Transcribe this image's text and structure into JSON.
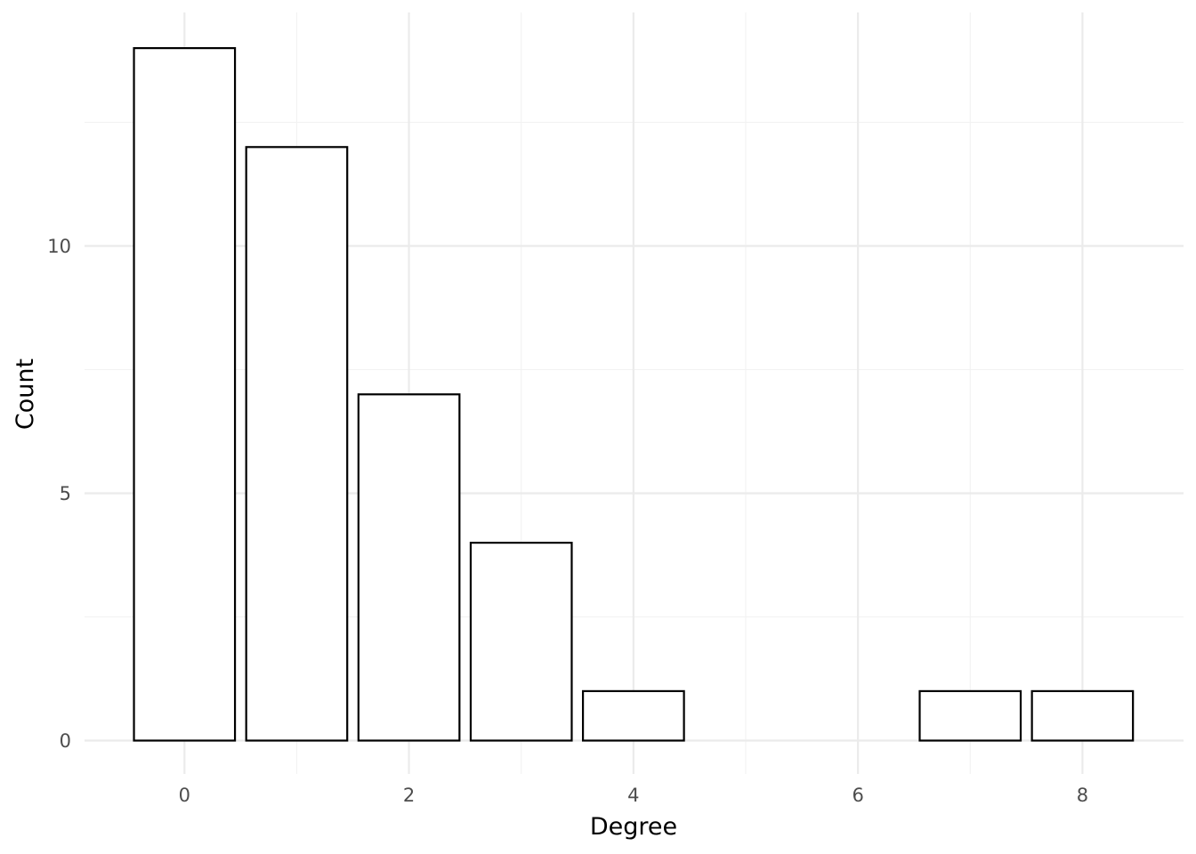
{
  "chart_data": {
    "type": "bar",
    "title": "",
    "xlabel": "Degree",
    "ylabel": "Count",
    "x": [
      0,
      1,
      2,
      3,
      4,
      7,
      8
    ],
    "values": [
      14,
      12,
      7,
      4,
      1,
      1,
      1
    ],
    "bar_width": 0.9,
    "xlim": [
      -0.45,
      8.45
    ],
    "ylim": [
      0,
      14
    ],
    "x_ticks": [
      0,
      2,
      4,
      6,
      8
    ],
    "x_tick_labels": [
      "0",
      "2",
      "4",
      "6",
      "8"
    ],
    "y_ticks": [
      0,
      5,
      10
    ],
    "y_tick_labels": [
      "0",
      "5",
      "10"
    ],
    "grid": true,
    "legend": "none",
    "colors": {
      "bar_fill": "#ffffff",
      "bar_outline": "#000000",
      "grid_major": "#ebebeb",
      "grid_minor": "#f2f2f2",
      "tick_text": "#4d4d4d",
      "axis_title": "#000000"
    }
  }
}
